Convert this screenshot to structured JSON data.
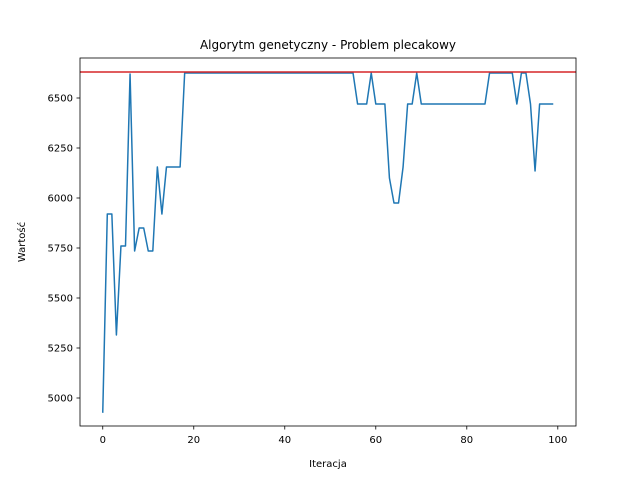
{
  "chart_data": {
    "type": "line",
    "title": "Algorytm genetyczny - Problem plecakowy",
    "xlabel": "Iteracja",
    "ylabel": "Wartość",
    "xlim": [
      -5,
      104
    ],
    "ylim": [
      4860,
      6700
    ],
    "xticks": [
      0,
      20,
      40,
      60,
      80,
      100
    ],
    "yticks": [
      5000,
      5250,
      5500,
      5750,
      6000,
      6250,
      6500
    ],
    "grid": false,
    "reference_line": {
      "y": 6630,
      "color": "#d62728"
    },
    "series": [
      {
        "color": "#1f77b4",
        "x": [
          0,
          1,
          2,
          3,
          4,
          5,
          6,
          7,
          8,
          9,
          10,
          11,
          12,
          13,
          14,
          15,
          16,
          17,
          18,
          19,
          20,
          21,
          22,
          23,
          24,
          25,
          26,
          27,
          28,
          29,
          30,
          31,
          32,
          33,
          34,
          35,
          36,
          37,
          38,
          39,
          40,
          41,
          42,
          43,
          44,
          45,
          46,
          47,
          48,
          49,
          50,
          51,
          52,
          53,
          54,
          55,
          56,
          57,
          58,
          59,
          60,
          61,
          62,
          63,
          64,
          65,
          66,
          67,
          68,
          69,
          70,
          71,
          72,
          73,
          74,
          75,
          76,
          77,
          78,
          79,
          80,
          81,
          82,
          83,
          84,
          85,
          86,
          87,
          88,
          89,
          90,
          91,
          92,
          93,
          94,
          95,
          96,
          97,
          98,
          99
        ],
        "values": [
          4926,
          5920,
          5920,
          5315,
          5760,
          5760,
          6620,
          5735,
          5850,
          5850,
          5735,
          5735,
          6155,
          5920,
          6155,
          6155,
          6155,
          6155,
          6625,
          6625,
          6625,
          6625,
          6625,
          6625,
          6625,
          6625,
          6625,
          6625,
          6625,
          6625,
          6625,
          6625,
          6625,
          6625,
          6625,
          6625,
          6625,
          6625,
          6625,
          6625,
          6625,
          6625,
          6625,
          6625,
          6625,
          6625,
          6625,
          6625,
          6625,
          6625,
          6625,
          6625,
          6625,
          6625,
          6625,
          6625,
          6470,
          6470,
          6470,
          6625,
          6470,
          6470,
          6470,
          6100,
          5975,
          5975,
          6155,
          6470,
          6470,
          6625,
          6470,
          6470,
          6470,
          6470,
          6470,
          6470,
          6470,
          6470,
          6470,
          6470,
          6470,
          6470,
          6470,
          6470,
          6470,
          6625,
          6625,
          6625,
          6625,
          6625,
          6625,
          6470,
          6625,
          6625,
          6470,
          6135,
          6470,
          6470,
          6470,
          6470
        ]
      }
    ]
  }
}
